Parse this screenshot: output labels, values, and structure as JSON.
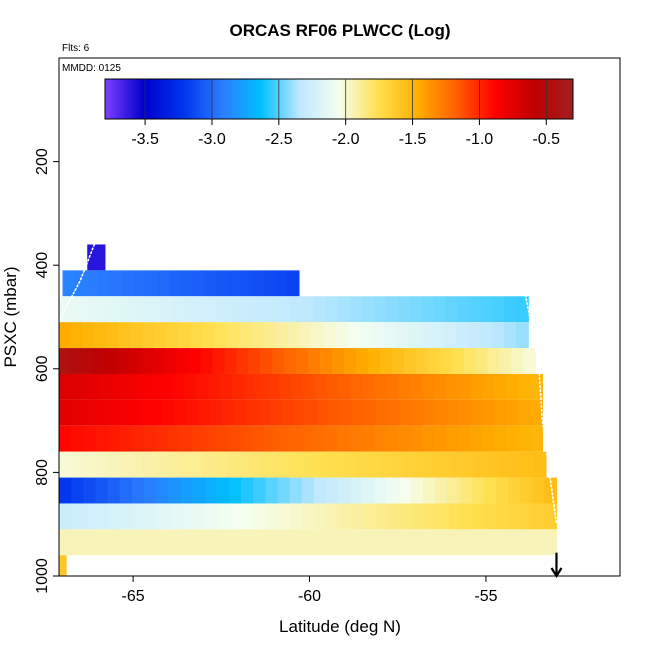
{
  "chart_data": {
    "type": "heatmap",
    "title": "ORCAS RF06 PLWCC (Log)",
    "flights_label": "Flts: 6",
    "date_label": "MMDD: 0125",
    "xlabel": "Latitude (deg N)",
    "ylabel": "PSXC (mbar)",
    "xlim": [
      -67.1,
      -51.2
    ],
    "ylim": [
      1000,
      0
    ],
    "x_ticks": [
      -65,
      -60,
      -55
    ],
    "x_tick_labels": [
      "-65",
      "-60",
      "-55"
    ],
    "y_ticks": [
      200,
      400,
      600,
      800,
      1000
    ],
    "y_tick_labels": [
      "200",
      "400",
      "600",
      "800",
      "1000"
    ],
    "colorbar": {
      "range": [
        -3.8,
        -0.3
      ],
      "ticks": [
        -3.5,
        -3.0,
        -2.5,
        -2.0,
        -1.5,
        -1.0,
        -0.5
      ],
      "tick_labels": [
        "-3.5",
        "-3.0",
        "-2.5",
        "-2.0",
        "-1.5",
        "-1.0",
        "-0.5"
      ],
      "colors": [
        "#7f3fff",
        "#0000cc",
        "#0033ee",
        "#2b7dff",
        "#00bfff",
        "#bfe8ff",
        "#f5fff0",
        "#ffe050",
        "#ffb000",
        "#ff6000",
        "#ff0000",
        "#c00000",
        "#a02020"
      ]
    },
    "bands": [
      {
        "p_top": 360,
        "p_bot": 410,
        "lat_start": -66.3,
        "lat_end": -65.8,
        "v_start": -3.6,
        "v_end": -3.5
      },
      {
        "p_top": 410,
        "p_bot": 460,
        "lat_start": -67.0,
        "lat_end": -60.3,
        "v_start": -2.9,
        "v_end": -3.15
      },
      {
        "p_top": 460,
        "p_bot": 510,
        "lat_start": -67.3,
        "lat_end": -53.8,
        "v_start": -2.1,
        "v_end": -2.55
      },
      {
        "p_top": 510,
        "p_bot": 560,
        "lat_start": -67.8,
        "lat_end": -53.8,
        "v_start": -1.4,
        "v_end": -2.4
      },
      {
        "p_top": 560,
        "p_bot": 610,
        "lat_start": -67.5,
        "lat_end": -53.6,
        "v_start": -0.4,
        "v_end": -2.0
      },
      {
        "p_top": 610,
        "p_bot": 660,
        "lat_start": -67.3,
        "lat_end": -53.4,
        "v_start": -0.7,
        "v_end": -1.5
      },
      {
        "p_top": 660,
        "p_bot": 710,
        "lat_start": -67.2,
        "lat_end": -53.4,
        "v_start": -0.75,
        "v_end": -1.45
      },
      {
        "p_top": 710,
        "p_bot": 760,
        "lat_start": -67.1,
        "lat_end": -53.4,
        "v_start": -0.9,
        "v_end": -1.5
      },
      {
        "p_top": 760,
        "p_bot": 810,
        "lat_start": -67.1,
        "lat_end": -53.3,
        "v_start": -2.0,
        "v_end": -1.55
      },
      {
        "p_top": 810,
        "p_bot": 860,
        "lat_start": -67.1,
        "lat_end": -53.0,
        "v_start": -3.2,
        "v_end": -1.55
      },
      {
        "p_top": 860,
        "p_bot": 910,
        "lat_start": -67.4,
        "lat_end": -53.0,
        "v_start": -2.3,
        "v_end": -1.65
      },
      {
        "p_top": 910,
        "p_bot": 960,
        "lat_start": -67.4,
        "lat_end": -53.0,
        "v_start": -1.95,
        "v_end": -1.95
      },
      {
        "p_top": 960,
        "p_bot": 1000,
        "lat_start": -67.1,
        "lat_end": -66.9,
        "v_start": -1.6,
        "v_end": -1.6
      }
    ],
    "flight_tracks": [
      {
        "name": "descent",
        "points": [
          [
            -66.1,
            360
          ],
          [
            -66.5,
            430
          ],
          [
            -67.2,
            520
          ],
          [
            -67.6,
            600
          ],
          [
            -67.5,
            700
          ],
          [
            -67.4,
            800
          ],
          [
            -67.5,
            900
          ]
        ]
      },
      {
        "name": "ascent",
        "points": [
          [
            -53.9,
            450
          ],
          [
            -53.7,
            520
          ],
          [
            -53.5,
            600
          ],
          [
            -53.4,
            700
          ],
          [
            -53.2,
            800
          ],
          [
            -53.0,
            900
          ]
        ]
      }
    ],
    "arrow_marker": {
      "lat": -53.0,
      "p_from": 955,
      "p_to": 1000
    }
  }
}
